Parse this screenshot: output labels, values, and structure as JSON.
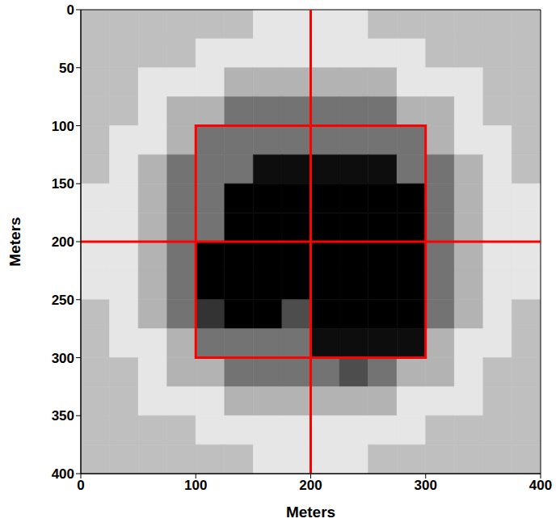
{
  "chart_data": {
    "type": "heatmap",
    "xlabel": "Meters",
    "ylabel": "Meters",
    "xlim": [
      0,
      400
    ],
    "ylim": [
      0,
      400
    ],
    "xticks": [
      0,
      100,
      200,
      300,
      400
    ],
    "yticks": [
      0,
      50,
      100,
      150,
      200,
      250,
      300,
      350,
      400
    ],
    "y_reversed": true,
    "cells": {
      "x_edges": [
        0,
        25,
        50,
        75,
        100,
        125,
        150,
        175,
        200,
        225,
        250,
        275,
        300,
        325,
        350,
        375,
        400
      ],
      "y_edges": [
        0,
        25,
        50,
        75,
        100,
        125,
        150,
        175,
        200,
        225,
        250,
        275,
        300,
        325,
        350,
        375,
        400
      ],
      "values": [
        [
          0.75,
          0.75,
          0.75,
          0.75,
          0.75,
          0.75,
          0.9,
          0.9,
          0.9,
          0.9,
          0.75,
          0.75,
          0.75,
          0.75,
          0.75,
          0.75
        ],
        [
          0.75,
          0.75,
          0.75,
          0.75,
          0.9,
          0.9,
          0.9,
          0.9,
          0.9,
          0.9,
          0.9,
          0.9,
          0.75,
          0.75,
          0.75,
          0.75
        ],
        [
          0.75,
          0.75,
          0.9,
          0.9,
          0.9,
          0.7,
          0.7,
          0.7,
          0.7,
          0.7,
          0.7,
          0.9,
          0.9,
          0.9,
          0.75,
          0.75
        ],
        [
          0.75,
          0.75,
          0.9,
          0.7,
          0.7,
          0.45,
          0.45,
          0.45,
          0.45,
          0.45,
          0.45,
          0.7,
          0.7,
          0.9,
          0.75,
          0.75
        ],
        [
          0.75,
          0.9,
          0.9,
          0.7,
          0.45,
          0.45,
          0.45,
          0.45,
          0.45,
          0.45,
          0.45,
          0.45,
          0.7,
          0.9,
          0.9,
          0.75
        ],
        [
          0.75,
          0.9,
          0.7,
          0.45,
          0.45,
          0.45,
          0.05,
          0.05,
          0.05,
          0.05,
          0.05,
          0.45,
          0.45,
          0.7,
          0.9,
          0.75
        ],
        [
          0.9,
          0.9,
          0.7,
          0.45,
          0.45,
          0,
          0,
          0,
          0,
          0,
          0,
          0,
          0.45,
          0.7,
          0.9,
          0.9
        ],
        [
          0.9,
          0.9,
          0.7,
          0.45,
          0.45,
          0,
          0,
          0,
          0,
          0,
          0,
          0,
          0.45,
          0.7,
          0.9,
          0.9
        ],
        [
          0.9,
          0.9,
          0.7,
          0.45,
          0,
          0,
          0,
          0,
          0,
          0,
          0,
          0,
          0.45,
          0.7,
          0.9,
          0.9
        ],
        [
          0.9,
          0.9,
          0.7,
          0.45,
          0,
          0,
          0,
          0,
          0,
          0,
          0,
          0,
          0.45,
          0.7,
          0.9,
          0.9
        ],
        [
          0.75,
          0.9,
          0.7,
          0.45,
          0.2,
          0,
          0,
          0.3,
          0,
          0,
          0,
          0,
          0.45,
          0.7,
          0.9,
          0.75
        ],
        [
          0.75,
          0.9,
          0.9,
          0.7,
          0.45,
          0.45,
          0.45,
          0.45,
          0.05,
          0.05,
          0.05,
          0.05,
          0.7,
          0.9,
          0.9,
          0.75
        ],
        [
          0.75,
          0.75,
          0.9,
          0.7,
          0.7,
          0.45,
          0.45,
          0.45,
          0.45,
          0.3,
          0.45,
          0.7,
          0.7,
          0.9,
          0.75,
          0.75
        ],
        [
          0.75,
          0.75,
          0.9,
          0.9,
          0.9,
          0.7,
          0.7,
          0.7,
          0.7,
          0.7,
          0.7,
          0.9,
          0.9,
          0.9,
          0.75,
          0.75
        ],
        [
          0.75,
          0.75,
          0.75,
          0.75,
          0.9,
          0.9,
          0.9,
          0.9,
          0.9,
          0.9,
          0.9,
          0.9,
          0.75,
          0.75,
          0.75,
          0.75
        ],
        [
          0.75,
          0.75,
          0.75,
          0.75,
          0.75,
          0.75,
          0.9,
          0.9,
          0.9,
          0.9,
          0.75,
          0.75,
          0.75,
          0.75,
          0.75,
          0.75
        ]
      ]
    },
    "reference_lines": {
      "x": [
        200
      ],
      "y": [
        200
      ],
      "color": "#ff0000"
    },
    "rectangle": {
      "x1": 100,
      "x2": 300,
      "y1": 100,
      "y2": 300,
      "color": "#ff0000"
    }
  }
}
